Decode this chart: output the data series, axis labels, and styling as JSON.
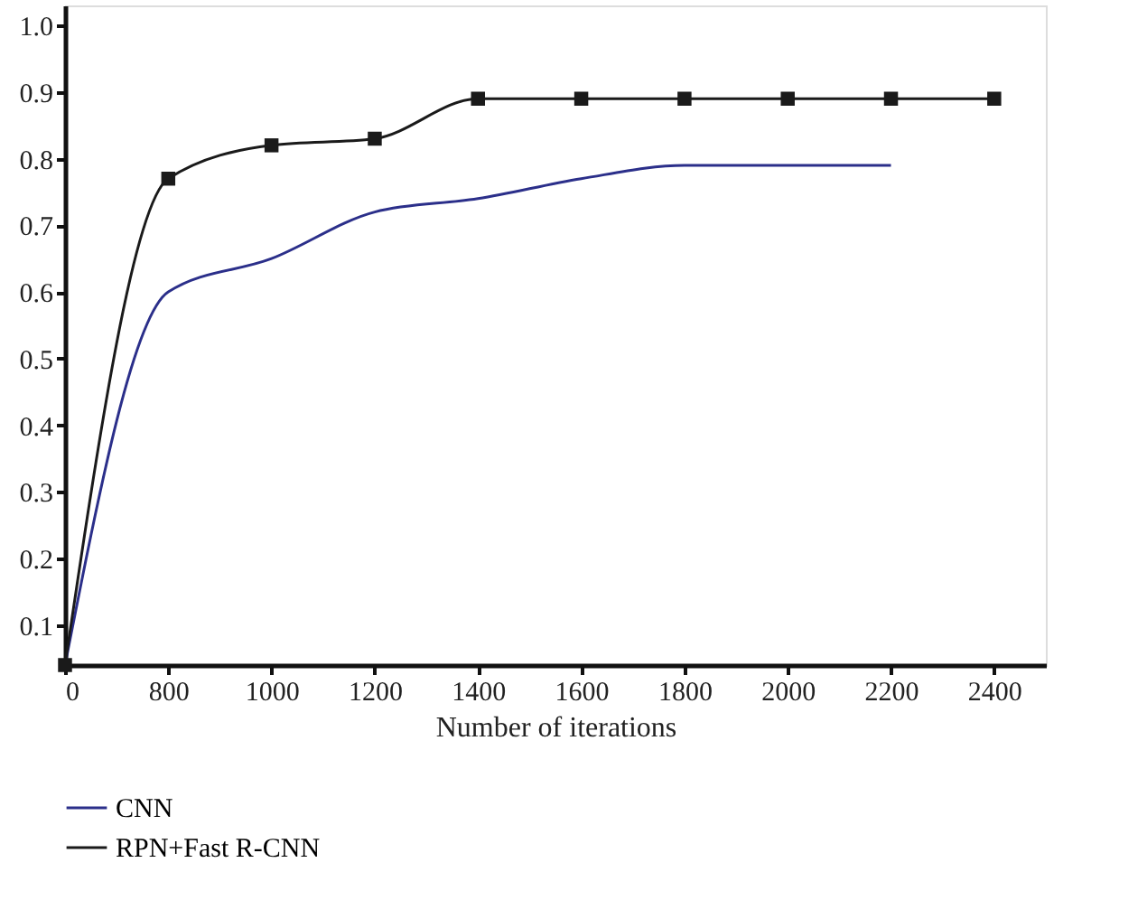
{
  "chart_data": {
    "type": "line",
    "xlabel": "Number of iterations",
    "categories": [
      "0",
      "800",
      "1000",
      "1200",
      "1400",
      "1600",
      "1800",
      "2000",
      "2200",
      "2400"
    ],
    "ylim": [
      0.04,
      1.03
    ],
    "yticks": [
      0.1,
      0.2,
      0.3,
      0.4,
      0.5,
      0.6,
      0.7,
      0.8,
      0.9,
      {
        "value": 1.0,
        "label": "1.0"
      }
    ],
    "grid": false,
    "legend": "bottom left",
    "series": [
      {
        "name": "CNN",
        "color": "#2b2f8a",
        "marker": "none",
        "values": [
          0.04,
          0.6,
          0.65,
          0.72,
          0.74,
          0.77,
          0.79,
          0.79,
          0.79,
          null
        ]
      },
      {
        "name": "RPN+Fast R-CNN",
        "color": "#1a1a1a",
        "marker": "square",
        "values": [
          0.04,
          0.77,
          0.82,
          0.83,
          0.89,
          0.89,
          0.89,
          0.89,
          0.89,
          0.89
        ]
      }
    ]
  }
}
